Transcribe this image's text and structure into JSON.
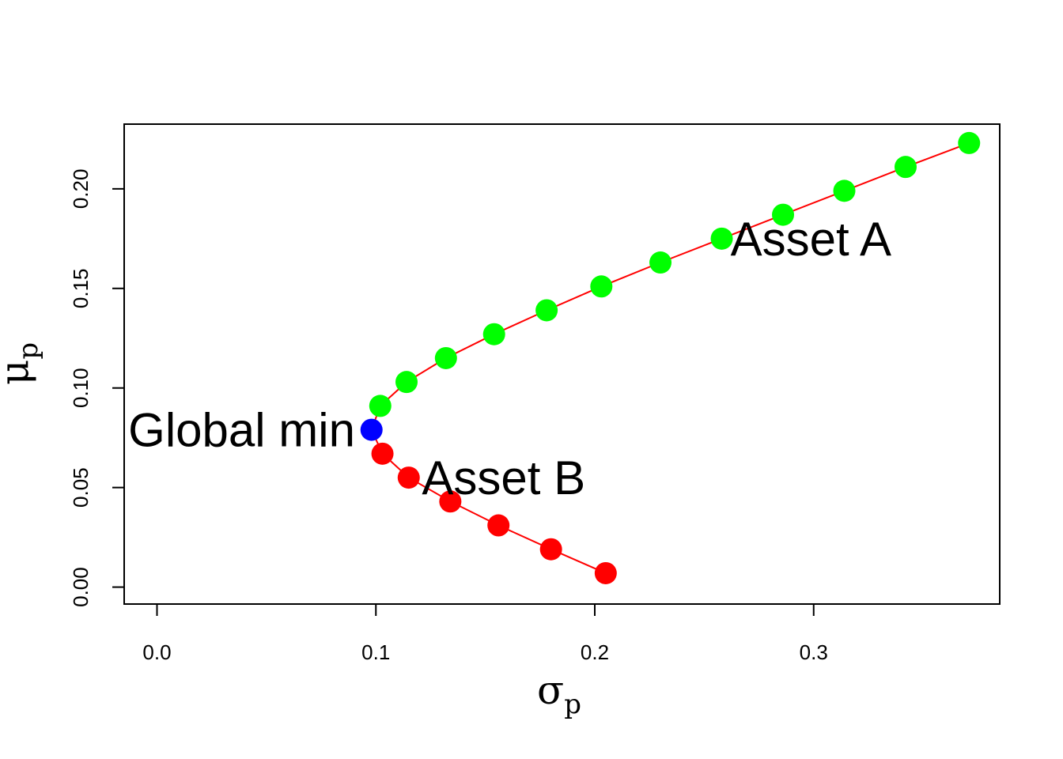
{
  "chart_data": {
    "type": "scatter",
    "xlabel": "σ",
    "xlabel_sub": "p",
    "ylabel": "μ",
    "ylabel_sub": "p",
    "xlim": [
      -0.015,
      0.385
    ],
    "ylim": [
      -0.0085,
      0.2325
    ],
    "x_ticks": [
      0.0,
      0.1,
      0.2,
      0.3
    ],
    "x_tick_labels": [
      "0.0",
      "0.1",
      "0.2",
      "0.3"
    ],
    "y_ticks": [
      0.0,
      0.05,
      0.1,
      0.15,
      0.2
    ],
    "y_tick_labels": [
      "0.00",
      "0.05",
      "0.10",
      "0.15",
      "0.20"
    ],
    "grid": false,
    "line_color": "#ff0000",
    "frontier_line": [
      {
        "x": 0.205,
        "y": 0.007
      },
      {
        "x": 0.18,
        "y": 0.019
      },
      {
        "x": 0.156,
        "y": 0.031
      },
      {
        "x": 0.134,
        "y": 0.043
      },
      {
        "x": 0.115,
        "y": 0.055
      },
      {
        "x": 0.103,
        "y": 0.067
      },
      {
        "x": 0.098,
        "y": 0.079
      },
      {
        "x": 0.102,
        "y": 0.091
      },
      {
        "x": 0.114,
        "y": 0.103
      },
      {
        "x": 0.132,
        "y": 0.115
      },
      {
        "x": 0.154,
        "y": 0.127
      },
      {
        "x": 0.178,
        "y": 0.139
      },
      {
        "x": 0.203,
        "y": 0.151
      },
      {
        "x": 0.23,
        "y": 0.163
      },
      {
        "x": 0.258,
        "y": 0.175
      },
      {
        "x": 0.286,
        "y": 0.187
      },
      {
        "x": 0.314,
        "y": 0.199
      },
      {
        "x": 0.342,
        "y": 0.211
      },
      {
        "x": 0.371,
        "y": 0.223
      }
    ],
    "series": [
      {
        "color": "#ff0000",
        "points": [
          {
            "x": 0.205,
            "y": 0.007
          },
          {
            "x": 0.18,
            "y": 0.019
          },
          {
            "x": 0.156,
            "y": 0.031
          },
          {
            "x": 0.134,
            "y": 0.043
          },
          {
            "x": 0.115,
            "y": 0.055
          },
          {
            "x": 0.103,
            "y": 0.067
          }
        ]
      },
      {
        "color": "#0000ff",
        "points": [
          {
            "x": 0.098,
            "y": 0.079
          }
        ]
      },
      {
        "color": "#00ff00",
        "points": [
          {
            "x": 0.102,
            "y": 0.091
          },
          {
            "x": 0.114,
            "y": 0.103
          },
          {
            "x": 0.132,
            "y": 0.115
          },
          {
            "x": 0.154,
            "y": 0.127
          },
          {
            "x": 0.178,
            "y": 0.139
          },
          {
            "x": 0.203,
            "y": 0.151
          },
          {
            "x": 0.23,
            "y": 0.163
          },
          {
            "x": 0.258,
            "y": 0.175
          },
          {
            "x": 0.286,
            "y": 0.187
          },
          {
            "x": 0.314,
            "y": 0.199
          },
          {
            "x": 0.342,
            "y": 0.211
          },
          {
            "x": 0.371,
            "y": 0.223
          }
        ]
      }
    ],
    "annotations": [
      {
        "text": "Asset A",
        "x": 0.262,
        "y": 0.175,
        "anchor": "start"
      },
      {
        "text": "Global min",
        "x": 0.0905,
        "y": 0.079,
        "anchor": "end"
      },
      {
        "text": "Asset B",
        "x": 0.121,
        "y": 0.055,
        "anchor": "start"
      }
    ]
  }
}
